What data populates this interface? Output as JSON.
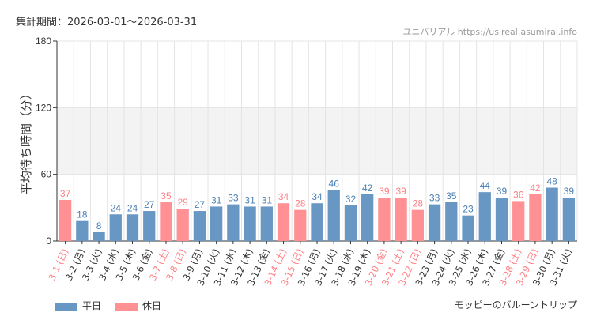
{
  "header": {
    "period": "集計期間：2026-03-01～2026-03-31",
    "credit": "ユニバリアル  https://usjreal.asumirai.info"
  },
  "footer": {
    "attraction": "モッピーのバルーントリップ"
  },
  "colors": {
    "weekday": "#6897c4",
    "holiday": "#ff9194",
    "holiday_text": "#ff7f84",
    "weekday_text": "#4a7fb5",
    "band": "#f3f3f3"
  },
  "chart_data": {
    "type": "bar",
    "title": "",
    "xlabel": "",
    "ylabel": "平均待ち時間（分）",
    "ylim": [
      0,
      180
    ],
    "yticks": [
      0,
      60,
      120,
      180
    ],
    "grid": true,
    "shaded_band": [
      60,
      120
    ],
    "legend": {
      "placement": "bottom-left",
      "entries": [
        {
          "name": "平日",
          "color": "#6897c4"
        },
        {
          "name": "休日",
          "color": "#ff9194"
        }
      ]
    },
    "categories": [
      "3-1 (日)",
      "3-2 (月)",
      "3-3 (火)",
      "3-4 (水)",
      "3-5 (木)",
      "3-6 (金)",
      "3-7 (土)",
      "3-8 (日)",
      "3-9 (月)",
      "3-10 (火)",
      "3-11 (水)",
      "3-12 (木)",
      "3-13 (金)",
      "3-14 (土)",
      "3-15 (日)",
      "3-16 (月)",
      "3-17 (火)",
      "3-18 (水)",
      "3-19 (木)",
      "3-20 (金)",
      "3-21 (土)",
      "3-22 (日)",
      "3-23 (月)",
      "3-24 (火)",
      "3-25 (水)",
      "3-26 (木)",
      "3-27 (金)",
      "3-28 (土)",
      "3-29 (日)",
      "3-30 (月)",
      "3-31 (火)"
    ],
    "values": [
      37,
      18,
      8,
      24,
      24,
      27,
      35,
      29,
      27,
      31,
      33,
      31,
      31,
      34,
      28,
      34,
      46,
      32,
      42,
      39,
      39,
      28,
      33,
      35,
      23,
      44,
      39,
      36,
      42,
      48,
      39
    ],
    "holiday": [
      true,
      false,
      false,
      false,
      false,
      false,
      true,
      true,
      false,
      false,
      false,
      false,
      false,
      true,
      true,
      false,
      false,
      false,
      false,
      true,
      true,
      true,
      false,
      false,
      false,
      false,
      false,
      true,
      true,
      false,
      false
    ]
  }
}
